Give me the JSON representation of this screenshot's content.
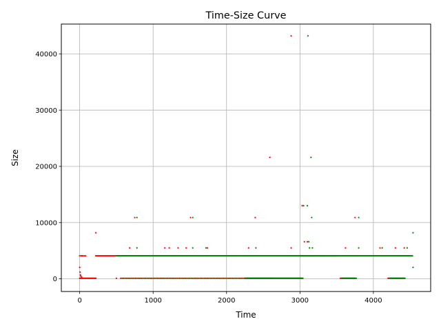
{
  "chart_data": {
    "type": "scatter",
    "title": "Time-Size Curve",
    "xlabel": "Time",
    "ylabel": "Size",
    "xlim": [
      -250,
      4780
    ],
    "ylim": [
      -2250,
      45300
    ],
    "xticks": [
      0,
      1000,
      2000,
      3000,
      4000
    ],
    "xtick_labels": [
      "0",
      "1000",
      "2000",
      "3000",
      "4000"
    ],
    "yticks": [
      0,
      10000,
      20000,
      30000,
      40000
    ],
    "ytick_labels": [
      "0",
      "10000",
      "20000",
      "30000",
      "40000"
    ],
    "grid": true,
    "legend": "none",
    "series": [
      {
        "color": "#ff0000",
        "bands": [
          {
            "x_start": 0,
            "x_end": 220,
            "step": 10,
            "y": 100
          },
          {
            "x_start": 220,
            "x_end": 4500,
            "step": 14,
            "y": 4096
          },
          {
            "x_start": 560,
            "x_end": 2600,
            "step": 40,
            "y": 100
          },
          {
            "x_start": 2250,
            "x_end": 3020,
            "step": 14,
            "y": 100
          },
          {
            "x_start": 3550,
            "x_end": 3750,
            "step": 14,
            "y": 100
          },
          {
            "x_start": 4200,
            "x_end": 4420,
            "step": 14,
            "y": 100
          }
        ],
        "points": [
          [
            0,
            4096
          ],
          [
            20,
            4096
          ],
          [
            30,
            4096
          ],
          [
            0,
            2048
          ],
          [
            5,
            1200
          ],
          [
            10,
            700
          ],
          [
            15,
            500
          ],
          [
            25,
            300
          ],
          [
            40,
            4096
          ],
          [
            60,
            4096
          ],
          [
            80,
            4096
          ],
          [
            220,
            8192
          ],
          [
            500,
            100
          ],
          [
            680,
            5500
          ],
          [
            750,
            10900
          ],
          [
            1160,
            5500
          ],
          [
            1220,
            5500
          ],
          [
            1340,
            5500
          ],
          [
            1450,
            5500
          ],
          [
            1510,
            10900
          ],
          [
            1740,
            5500
          ],
          [
            2300,
            5500
          ],
          [
            2390,
            10900
          ],
          [
            2590,
            21600
          ],
          [
            2880,
            43200
          ],
          [
            2880,
            5500
          ],
          [
            3030,
            13000
          ],
          [
            3060,
            6600
          ],
          [
            3100,
            6600
          ],
          [
            3620,
            5500
          ],
          [
            3750,
            10900
          ],
          [
            4090,
            5500
          ],
          [
            4300,
            5500
          ],
          [
            4420,
            5500
          ]
        ]
      },
      {
        "color": "#008000",
        "bands": [
          {
            "x_start": 500,
            "x_end": 4540,
            "step": 14,
            "y": 4096
          },
          {
            "x_start": 3000,
            "x_end": 3500,
            "step": 6,
            "y": 4096
          },
          {
            "x_start": 580,
            "x_end": 2620,
            "step": 40,
            "y": 100
          },
          {
            "x_start": 2270,
            "x_end": 3040,
            "step": 14,
            "y": 100
          },
          {
            "x_start": 3570,
            "x_end": 3770,
            "step": 14,
            "y": 100
          },
          {
            "x_start": 4220,
            "x_end": 4440,
            "step": 14,
            "y": 100
          }
        ],
        "points": [
          [
            780,
            5500
          ],
          [
            780,
            10900
          ],
          [
            1540,
            10900
          ],
          [
            1540,
            5500
          ],
          [
            1720,
            5500
          ],
          [
            2400,
            5500
          ],
          [
            3110,
            43200
          ],
          [
            3050,
            13000
          ],
          [
            3100,
            13000
          ],
          [
            3120,
            6600
          ],
          [
            3130,
            5500
          ],
          [
            3150,
            21600
          ],
          [
            3160,
            10900
          ],
          [
            3170,
            5500
          ],
          [
            3800,
            5500
          ],
          [
            3800,
            10900
          ],
          [
            4120,
            5500
          ],
          [
            4460,
            5500
          ],
          [
            4540,
            8192
          ],
          [
            4540,
            2048
          ]
        ]
      }
    ]
  }
}
